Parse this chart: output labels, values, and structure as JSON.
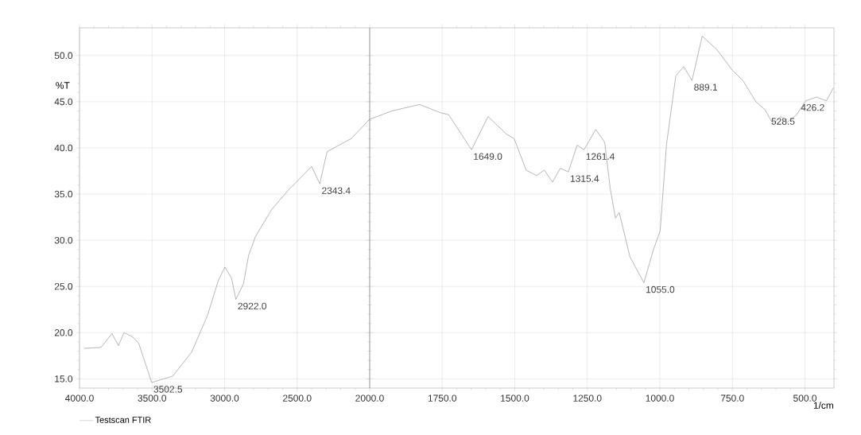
{
  "chart_data": [
    {
      "type": "line",
      "ylabel": "%T",
      "xlim": [
        4000,
        2000
      ],
      "ylim": [
        14,
        53
      ],
      "xticks": [
        {
          "value": 4000,
          "label": "4000.0"
        },
        {
          "value": 3500,
          "label": "3500.0"
        },
        {
          "value": 3000,
          "label": "3000.0"
        },
        {
          "value": 2500,
          "label": "2500.0"
        },
        {
          "value": 2000,
          "label": "2000.0"
        }
      ],
      "yticks": [
        {
          "value": 15,
          "label": "15.0"
        },
        {
          "value": 20,
          "label": "20.0"
        },
        {
          "value": 25,
          "label": "25.0"
        },
        {
          "value": 30,
          "label": "30.0"
        },
        {
          "value": 35,
          "label": "35.0"
        },
        {
          "value": 40,
          "label": "40.0"
        },
        {
          "value": 45,
          "label": "45.0"
        },
        {
          "value": 50,
          "label": "50.0"
        }
      ],
      "grid": true,
      "legend": "bottom left",
      "marker": "none",
      "line_style": "solid",
      "series": [
        {
          "name": "Testscan FTIR",
          "color": "#9a9a9a",
          "x": [
            3969,
            3852,
            3776,
            3731,
            3694,
            3639,
            3593,
            3502.5,
            3357,
            3227,
            3117,
            3044,
            2998,
            2952,
            2922,
            2870,
            2834,
            2787,
            2677,
            2568,
            2400,
            2343.4,
            2320,
            2293,
            2128,
            2000
          ],
          "values": [
            18.3,
            18.4,
            19.9,
            18.6,
            20.0,
            19.6,
            18.9,
            14.6,
            15.3,
            17.9,
            21.9,
            25.6,
            27.1,
            25.9,
            23.6,
            25.3,
            28.4,
            30.4,
            33.3,
            35.3,
            38.0,
            36.1,
            37.8,
            39.6,
            41.0,
            43.1
          ]
        }
      ],
      "annotations": [
        {
          "text": "3502.5",
          "x": 3502.5,
          "y": 14.6
        },
        {
          "text": "2922.0",
          "x": 2922,
          "y": 23.6
        },
        {
          "text": "2343.4",
          "x": 2343.4,
          "y": 36.1
        }
      ]
    },
    {
      "type": "line",
      "xlabel": "1/cm",
      "xlim": [
        2000,
        400
      ],
      "ylim": [
        14,
        53
      ],
      "xticks": [
        {
          "value": 1750,
          "label": "1750.0"
        },
        {
          "value": 1500,
          "label": "1500.0"
        },
        {
          "value": 1250,
          "label": "1250.0"
        },
        {
          "value": 1000,
          "label": "1000.0"
        },
        {
          "value": 750,
          "label": "750.0"
        },
        {
          "value": 500,
          "label": "500.0"
        }
      ],
      "yticks": [
        {
          "value": 15,
          "label": null
        },
        {
          "value": 20,
          "label": null
        },
        {
          "value": 25,
          "label": null
        },
        {
          "value": 30,
          "label": null
        },
        {
          "value": 35,
          "label": null
        },
        {
          "value": 40,
          "label": null
        },
        {
          "value": 45,
          "label": null
        },
        {
          "value": 50,
          "label": null
        }
      ],
      "tick_labels": "x",
      "grid": true,
      "marker": "none",
      "line_style": "solid",
      "series": [
        {
          "color": "#9a9a9a",
          "x": [
            2000,
            1924,
            1828,
            1755,
            1728,
            1649,
            1592,
            1529,
            1502,
            1461,
            1425,
            1398,
            1370,
            1343,
            1315.4,
            1285,
            1261.4,
            1221,
            1190,
            1171,
            1153,
            1140,
            1103,
            1055,
            1022,
            999,
            977,
            945,
            918,
            889.1,
            854,
            805,
            750,
            714,
            669,
            637,
            610,
            583,
            560,
            528.5,
            497,
            460,
            426.2,
            402
          ],
          "values": [
            43.1,
            44.0,
            44.7,
            43.8,
            43.6,
            39.8,
            43.4,
            41.5,
            41.0,
            37.6,
            37.0,
            37.6,
            36.3,
            37.8,
            37.4,
            40.3,
            39.8,
            42.0,
            40.6,
            35.6,
            32.4,
            33.0,
            28.2,
            25.4,
            29.0,
            31.0,
            40.4,
            47.8,
            48.8,
            47.3,
            52.1,
            50.7,
            48.4,
            47.3,
            45.0,
            44.1,
            42.6,
            43.4,
            42.8,
            43.6,
            45.1,
            45.5,
            45.1,
            46.5
          ]
        }
      ],
      "annotations": [
        {
          "text": "1649.0",
          "x": 1649,
          "y": 39.8
        },
        {
          "text": "1315.4",
          "x": 1315.4,
          "y": 37.4
        },
        {
          "text": "1261.4",
          "x": 1261.4,
          "y": 39.8
        },
        {
          "text": "1055.0",
          "x": 1055,
          "y": 25.4
        },
        {
          "text": "889.1",
          "x": 889.1,
          "y": 47.3
        },
        {
          "text": "528.5",
          "x": 528.5,
          "y": 43.6
        },
        {
          "text": "426.2",
          "x": 426.2,
          "y": 45.1
        }
      ]
    }
  ]
}
